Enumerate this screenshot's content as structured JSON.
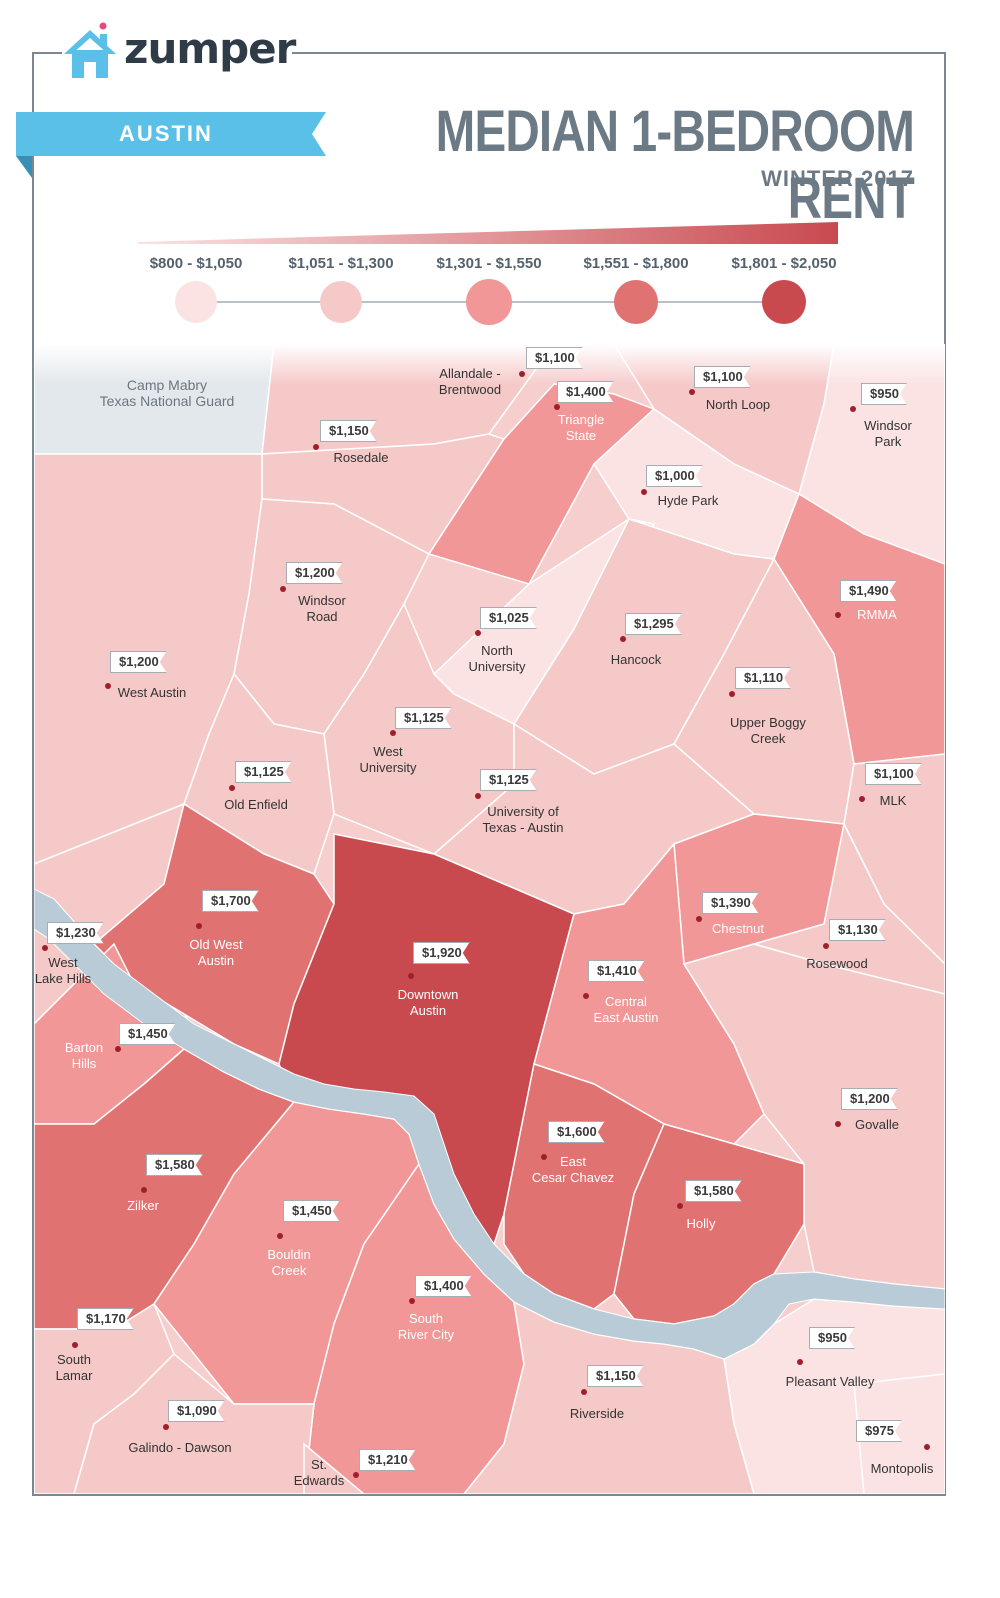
{
  "brand": {
    "name": "zumper",
    "house_color": "#5bc0e8",
    "dot_color": "#e84a7a"
  },
  "ribbon": {
    "label": "AUSTIN",
    "color": "#5bc0e8"
  },
  "title": "MEDIAN 1-BEDROOM RENT",
  "subtitle": "WINTER 2017",
  "legend": {
    "gradient": [
      "#fbe2e2",
      "#c84a50"
    ],
    "bins": [
      {
        "label": "$800 - $1,050",
        "color": "#fbe3e3"
      },
      {
        "label": "$1,051 - $1,300",
        "color": "#f6c9c9"
      },
      {
        "label": "$1,301 - $1,550",
        "color": "#f19797"
      },
      {
        "label": "$1,551 - $1,800",
        "color": "#e17272"
      },
      {
        "label": "$1,801 - $2,050",
        "color": "#c84a4e"
      }
    ]
  },
  "colors": {
    "river": "#b8cbd6",
    "park": "#e3e8ec",
    "neighborhood_border": "#ffffff",
    "pin": "#a01f2c",
    "label_light": "#ffffff",
    "label_dark": "#333333"
  },
  "park": {
    "name_line1": "Camp Mabry",
    "name_line2": "Texas National Guard"
  },
  "neighborhoods": [
    {
      "name": [
        "Allandale -",
        "Brentwood"
      ],
      "price": "$1,100",
      "bin": 1
    },
    {
      "name": [
        "Triangle",
        "State"
      ],
      "price": "$1,400",
      "bin": 2
    },
    {
      "name": [
        "North Loop"
      ],
      "price": "$1,100",
      "bin": 1
    },
    {
      "name": [
        "Windsor",
        "Park"
      ],
      "price": "$950",
      "bin": 0
    },
    {
      "name": [
        "Rosedale"
      ],
      "price": "$1,150",
      "bin": 1
    },
    {
      "name": [
        "Hyde Park"
      ],
      "price": "$1,000",
      "bin": 0
    },
    {
      "name": [
        "Windsor",
        "Road"
      ],
      "price": "$1,200",
      "bin": 1
    },
    {
      "name": [
        "RMMA"
      ],
      "price": "$1,490",
      "bin": 2
    },
    {
      "name": [
        "North",
        "University"
      ],
      "price": "$1,025",
      "bin": 0
    },
    {
      "name": [
        "Hancock"
      ],
      "price": "$1,295",
      "bin": 1
    },
    {
      "name": [
        "West Austin"
      ],
      "price": "$1,200",
      "bin": 1
    },
    {
      "name": [
        "Upper Boggy",
        "Creek"
      ],
      "price": "$1,110",
      "bin": 1
    },
    {
      "name": [
        "West",
        "University"
      ],
      "price": "$1,125",
      "bin": 1
    },
    {
      "name": [
        "Old Enfield"
      ],
      "price": "$1,125",
      "bin": 1
    },
    {
      "name": [
        "MLK"
      ],
      "price": "$1,100",
      "bin": 1
    },
    {
      "name": [
        "University of",
        "Texas - Austin"
      ],
      "price": "$1,125",
      "bin": 1
    },
    {
      "name": [
        "Old West",
        "Austin"
      ],
      "price": "$1,700",
      "bin": 3
    },
    {
      "name": [
        "Chestnut"
      ],
      "price": "$1,390",
      "bin": 2
    },
    {
      "name": [
        "West",
        "Lake Hills"
      ],
      "price": "$1,230",
      "bin": 1
    },
    {
      "name": [
        "Downtown",
        "Austin"
      ],
      "price": "$1,920",
      "bin": 4
    },
    {
      "name": [
        "Rosewood"
      ],
      "price": "$1,130",
      "bin": 1
    },
    {
      "name": [
        "Central",
        "East Austin"
      ],
      "price": "$1,410",
      "bin": 2
    },
    {
      "name": [
        "Barton",
        "Hills"
      ],
      "price": "$1,450",
      "bin": 2
    },
    {
      "name": [
        "Govalle"
      ],
      "price": "$1,200",
      "bin": 1
    },
    {
      "name": [
        "East",
        "Cesar Chavez"
      ],
      "price": "$1,600",
      "bin": 3
    },
    {
      "name": [
        "Zilker"
      ],
      "price": "$1,580",
      "bin": 3
    },
    {
      "name": [
        "Holly"
      ],
      "price": "$1,580",
      "bin": 3
    },
    {
      "name": [
        "Bouldin",
        "Creek"
      ],
      "price": "$1,450",
      "bin": 2
    },
    {
      "name": [
        "South",
        "River City"
      ],
      "price": "$1,400",
      "bin": 2
    },
    {
      "name": [
        "South",
        "Lamar"
      ],
      "price": "$1,170",
      "bin": 1
    },
    {
      "name": [
        "Pleasant Valley"
      ],
      "price": "$950",
      "bin": 0
    },
    {
      "name": [
        "Riverside"
      ],
      "price": "$1,150",
      "bin": 1
    },
    {
      "name": [
        "Galindo - Dawson"
      ],
      "price": "$1,090",
      "bin": 1
    },
    {
      "name": [
        "St.",
        "Edwards"
      ],
      "price": "$1,210",
      "bin": 1
    },
    {
      "name": [
        "Montopolis"
      ],
      "price": "$975",
      "bin": 0
    }
  ]
}
